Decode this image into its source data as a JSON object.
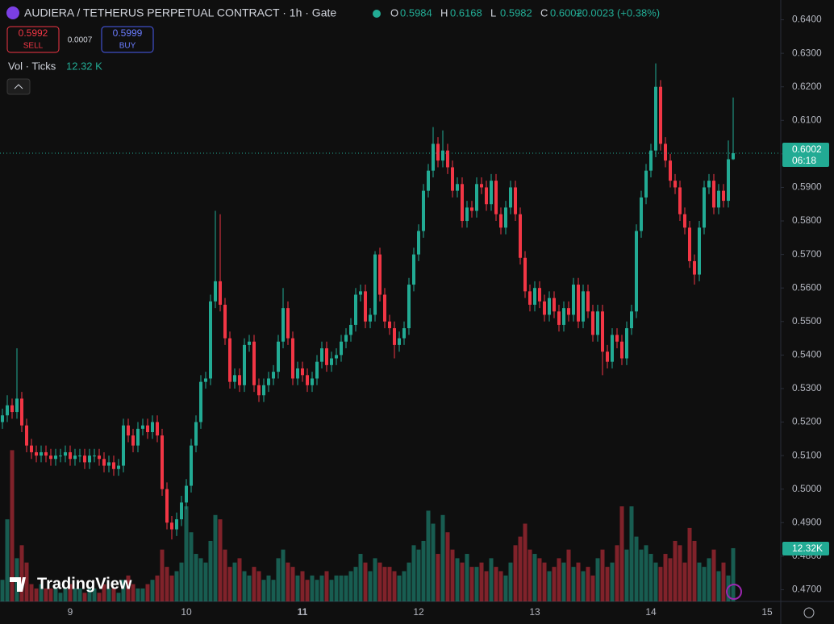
{
  "chart_data": {
    "type": "candlestick",
    "title": "AUDIERA / TETHERUS PERPETUAL CONTRACT · 1h · Gate",
    "ohlc_letters": [
      "O",
      "H",
      "L",
      "C"
    ],
    "change": {
      "value": 0.0023,
      "label": "+0.0023 (+0.38%)"
    },
    "sell": {
      "price": 0.5992,
      "label": "SELL"
    },
    "spread": 0.0007,
    "buy": {
      "price": 0.5999,
      "label": "BUY"
    },
    "volume_title": "Vol · Ticks",
    "volume_header": {
      "value": 12.32,
      "label": "12.32 K"
    },
    "volume_tag": {
      "value": 12.32,
      "label": "12.32K"
    },
    "countdown": "06:18",
    "branding": "TradingView",
    "day_labels": [
      "9",
      "10",
      "11",
      "12",
      "13",
      "14",
      "15"
    ],
    "up_color": "#22ab94",
    "down_color": "#f23645",
    "ylim": [
      0.4665,
      0.6459
    ],
    "yticks": [
      {
        "value": 0.64,
        "label": "0.6400"
      },
      {
        "value": 0.63,
        "label": "0.6300"
      },
      {
        "value": 0.62,
        "label": "0.6200"
      },
      {
        "value": 0.61,
        "label": "0.6100"
      },
      {
        "value": 0.6,
        "label": "0.6000"
      },
      {
        "value": 0.59,
        "label": "0.5900"
      },
      {
        "value": 0.58,
        "label": "0.5800"
      },
      {
        "value": 0.57,
        "label": "0.5700"
      },
      {
        "value": 0.56,
        "label": "0.5600"
      },
      {
        "value": 0.55,
        "label": "0.5500"
      },
      {
        "value": 0.54,
        "label": "0.5400"
      },
      {
        "value": 0.53,
        "label": "0.5300"
      },
      {
        "value": 0.52,
        "label": "0.5200"
      },
      {
        "value": 0.51,
        "label": "0.5100"
      },
      {
        "value": 0.5,
        "label": "0.5000"
      },
      {
        "value": 0.49,
        "label": "0.4900"
      },
      {
        "value": 0.48,
        "label": "0.4800"
      },
      {
        "value": 0.47,
        "label": "0.4700"
      }
    ],
    "open": [
      0.52,
      0.522,
      0.525,
      0.523,
      0.527,
      0.519,
      0.513,
      0.511,
      0.51,
      0.511,
      0.51,
      0.509,
      0.51,
      0.51,
      0.511,
      0.509,
      0.51,
      0.51,
      0.508,
      0.51,
      0.51,
      0.509,
      0.507,
      0.508,
      0.506,
      0.507,
      0.519,
      0.516,
      0.513,
      0.518,
      0.519,
      0.517,
      0.52,
      0.516,
      0.5,
      0.49,
      0.488,
      0.491,
      0.496,
      0.501,
      0.513,
      0.52,
      0.532,
      0.533,
      0.556,
      0.562,
      0.555,
      0.545,
      0.532,
      0.534,
      0.531,
      0.543,
      0.544,
      0.531,
      0.528,
      0.531,
      0.533,
      0.535,
      0.544,
      0.554,
      0.545,
      0.533,
      0.536,
      0.534,
      0.531,
      0.533,
      0.538,
      0.542,
      0.537,
      0.539,
      0.54,
      0.544,
      0.546,
      0.549,
      0.558,
      0.559,
      0.55,
      0.552,
      0.57,
      0.558,
      0.55,
      0.548,
      0.543,
      0.545,
      0.548,
      0.561,
      0.57,
      0.577,
      0.589,
      0.595,
      0.603,
      0.598,
      0.601,
      0.596,
      0.589,
      0.591,
      0.58,
      0.584,
      0.583,
      0.591,
      0.59,
      0.585,
      0.592,
      0.582,
      0.578,
      0.584,
      0.59,
      0.582,
      0.569,
      0.559,
      0.555,
      0.56,
      0.556,
      0.552,
      0.557,
      0.553,
      0.549,
      0.554,
      0.552,
      0.561,
      0.55,
      0.559,
      0.553,
      0.546,
      0.553,
      0.541,
      0.538,
      0.546,
      0.544,
      0.539,
      0.548,
      0.553,
      0.577,
      0.587,
      0.595,
      0.601,
      0.62,
      0.603,
      0.598,
      0.592,
      0.59,
      0.582,
      0.578,
      0.568,
      0.564,
      0.578,
      0.59,
      0.592,
      0.584,
      0.589,
      0.586,
      0.5984
    ],
    "high": [
      0.524,
      0.528,
      0.527,
      0.542,
      0.529,
      0.521,
      0.515,
      0.513,
      0.513,
      0.513,
      0.512,
      0.512,
      0.512,
      0.513,
      0.513,
      0.512,
      0.512,
      0.512,
      0.512,
      0.512,
      0.512,
      0.511,
      0.51,
      0.51,
      0.509,
      0.521,
      0.521,
      0.518,
      0.52,
      0.521,
      0.521,
      0.522,
      0.522,
      0.518,
      0.502,
      0.492,
      0.493,
      0.498,
      0.503,
      0.515,
      0.522,
      0.534,
      0.535,
      0.558,
      0.583,
      0.582,
      0.557,
      0.547,
      0.536,
      0.536,
      0.545,
      0.546,
      0.546,
      0.533,
      0.533,
      0.535,
      0.537,
      0.546,
      0.56,
      0.556,
      0.547,
      0.538,
      0.538,
      0.536,
      0.535,
      0.54,
      0.544,
      0.544,
      0.541,
      0.542,
      0.546,
      0.548,
      0.551,
      0.56,
      0.561,
      0.561,
      0.554,
      0.571,
      0.572,
      0.56,
      0.552,
      0.55,
      0.547,
      0.55,
      0.563,
      0.572,
      0.579,
      0.591,
      0.597,
      0.608,
      0.605,
      0.607,
      0.603,
      0.598,
      0.593,
      0.593,
      0.586,
      0.586,
      0.593,
      0.593,
      0.592,
      0.594,
      0.594,
      0.584,
      0.586,
      0.592,
      0.592,
      0.584,
      0.571,
      0.561,
      0.562,
      0.562,
      0.558,
      0.559,
      0.559,
      0.555,
      0.556,
      0.556,
      0.563,
      0.563,
      0.561,
      0.561,
      0.555,
      0.555,
      0.555,
      0.543,
      0.548,
      0.548,
      0.546,
      0.55,
      0.555,
      0.579,
      0.589,
      0.597,
      0.603,
      0.627,
      0.622,
      0.605,
      0.6,
      0.594,
      0.592,
      0.584,
      0.58,
      0.57,
      0.58,
      0.592,
      0.594,
      0.594,
      0.591,
      0.591,
      0.604,
      0.6168
    ],
    "low": [
      0.518,
      0.52,
      0.521,
      0.521,
      0.517,
      0.511,
      0.509,
      0.508,
      0.508,
      0.508,
      0.507,
      0.507,
      0.508,
      0.508,
      0.507,
      0.507,
      0.508,
      0.506,
      0.506,
      0.508,
      0.507,
      0.505,
      0.505,
      0.504,
      0.504,
      0.505,
      0.514,
      0.511,
      0.511,
      0.516,
      0.515,
      0.515,
      0.514,
      0.498,
      0.488,
      0.485,
      0.486,
      0.489,
      0.494,
      0.499,
      0.511,
      0.518,
      0.53,
      0.531,
      0.554,
      0.553,
      0.543,
      0.53,
      0.53,
      0.529,
      0.529,
      0.541,
      0.529,
      0.526,
      0.526,
      0.529,
      0.531,
      0.533,
      0.542,
      0.543,
      0.531,
      0.531,
      0.532,
      0.529,
      0.529,
      0.531,
      0.536,
      0.535,
      0.535,
      0.537,
      0.538,
      0.542,
      0.544,
      0.547,
      0.556,
      0.548,
      0.548,
      0.55,
      0.556,
      0.548,
      0.546,
      0.539,
      0.541,
      0.543,
      0.546,
      0.559,
      0.568,
      0.575,
      0.587,
      0.593,
      0.596,
      0.596,
      0.594,
      0.587,
      0.587,
      0.578,
      0.578,
      0.581,
      0.581,
      0.588,
      0.583,
      0.583,
      0.58,
      0.576,
      0.576,
      0.582,
      0.58,
      0.567,
      0.557,
      0.553,
      0.553,
      0.554,
      0.55,
      0.55,
      0.551,
      0.547,
      0.547,
      0.55,
      0.55,
      0.548,
      0.548,
      0.551,
      0.544,
      0.544,
      0.534,
      0.536,
      0.536,
      0.542,
      0.537,
      0.537,
      0.546,
      0.551,
      0.575,
      0.585,
      0.593,
      0.599,
      0.601,
      0.596,
      0.59,
      0.588,
      0.58,
      0.576,
      0.566,
      0.561,
      0.562,
      0.576,
      0.588,
      0.582,
      0.582,
      0.584,
      0.584,
      0.5982
    ],
    "close": [
      0.522,
      0.525,
      0.523,
      0.527,
      0.519,
      0.513,
      0.511,
      0.51,
      0.511,
      0.51,
      0.509,
      0.51,
      0.51,
      0.511,
      0.509,
      0.51,
      0.51,
      0.508,
      0.51,
      0.51,
      0.509,
      0.507,
      0.508,
      0.506,
      0.507,
      0.519,
      0.516,
      0.513,
      0.518,
      0.519,
      0.517,
      0.52,
      0.516,
      0.5,
      0.49,
      0.488,
      0.491,
      0.496,
      0.501,
      0.513,
      0.52,
      0.532,
      0.533,
      0.556,
      0.562,
      0.555,
      0.545,
      0.532,
      0.534,
      0.531,
      0.543,
      0.544,
      0.531,
      0.528,
      0.531,
      0.533,
      0.535,
      0.544,
      0.554,
      0.545,
      0.533,
      0.536,
      0.534,
      0.531,
      0.533,
      0.538,
      0.542,
      0.537,
      0.539,
      0.54,
      0.544,
      0.546,
      0.549,
      0.558,
      0.559,
      0.55,
      0.552,
      0.57,
      0.558,
      0.55,
      0.548,
      0.543,
      0.545,
      0.548,
      0.561,
      0.57,
      0.577,
      0.589,
      0.595,
      0.603,
      0.598,
      0.601,
      0.596,
      0.589,
      0.591,
      0.58,
      0.584,
      0.583,
      0.591,
      0.59,
      0.585,
      0.592,
      0.582,
      0.578,
      0.584,
      0.59,
      0.582,
      0.569,
      0.559,
      0.555,
      0.56,
      0.556,
      0.552,
      0.557,
      0.553,
      0.549,
      0.554,
      0.552,
      0.561,
      0.55,
      0.559,
      0.553,
      0.546,
      0.553,
      0.541,
      0.538,
      0.546,
      0.544,
      0.539,
      0.548,
      0.553,
      0.577,
      0.587,
      0.595,
      0.601,
      0.62,
      0.603,
      0.598,
      0.592,
      0.59,
      0.582,
      0.578,
      0.568,
      0.564,
      0.578,
      0.59,
      0.592,
      0.584,
      0.589,
      0.586,
      0.5984,
      0.6002
    ],
    "volume": [
      5,
      19,
      35,
      10,
      13,
      9,
      4,
      3,
      4,
      3,
      3,
      3,
      2,
      3,
      4,
      3,
      3,
      2,
      3,
      3,
      2,
      4,
      3,
      3,
      2,
      5,
      6,
      4,
      3,
      3,
      4,
      5,
      6,
      12,
      8,
      6,
      7,
      9,
      22,
      16,
      11,
      10,
      9,
      14,
      20,
      19,
      12,
      8,
      9,
      10,
      7,
      6,
      8,
      7,
      5,
      6,
      5,
      10,
      12,
      9,
      8,
      6,
      7,
      5,
      6,
      5,
      6,
      7,
      5,
      6,
      6,
      6,
      7,
      8,
      11,
      9,
      7,
      10,
      9,
      8,
      8,
      7,
      6,
      7,
      9,
      13,
      12,
      14,
      21,
      18,
      11,
      20,
      16,
      12,
      10,
      9,
      11,
      8,
      8,
      9,
      7,
      10,
      8,
      7,
      6,
      9,
      13,
      15,
      18,
      12,
      11,
      10,
      9,
      7,
      8,
      10,
      9,
      12,
      8,
      9,
      7,
      8,
      6,
      10,
      12,
      8,
      9,
      13,
      22,
      12,
      22,
      15,
      12,
      13,
      11,
      9,
      8,
      11,
      10,
      14,
      13,
      9,
      17,
      14,
      9,
      8,
      10,
      12,
      7,
      9,
      6,
      12.32
    ]
  }
}
